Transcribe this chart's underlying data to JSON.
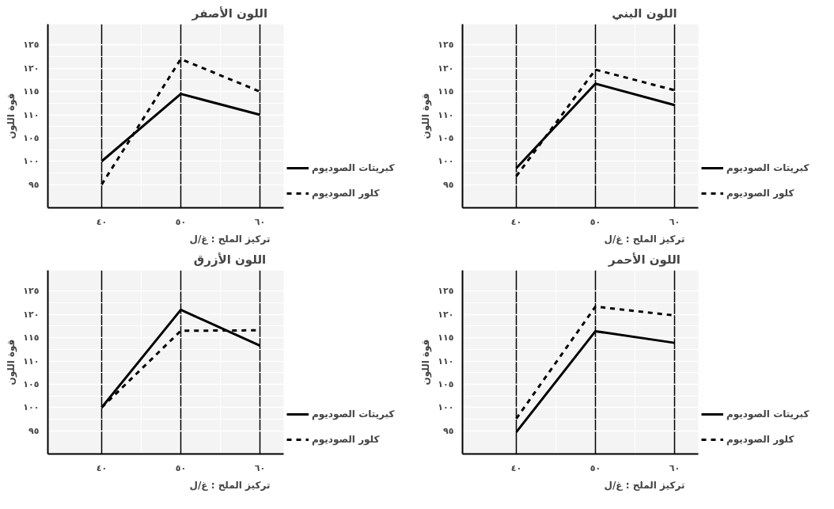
{
  "chart_data": [
    {
      "type": "line",
      "title": "اللون الأصفر",
      "xlabel": "تركيز الملح : غ/ل",
      "ylabel": "قوة اللون",
      "x": [
        40,
        50,
        60
      ],
      "xlim": [
        33.2,
        63
      ],
      "ylim": [
        90,
        129.5
      ],
      "xticks": [
        {
          "value": 40,
          "label": "٤٠"
        },
        {
          "value": 50,
          "label": "٥٠"
        },
        {
          "value": 60,
          "label": "٦٠"
        }
      ],
      "yticks": [
        {
          "value": 95,
          "label": "٩٥"
        },
        {
          "value": 100,
          "label": "١٠٠"
        },
        {
          "value": 105,
          "label": "١٠٥"
        },
        {
          "value": 110,
          "label": "١١٠"
        },
        {
          "value": 115,
          "label": "١١٥"
        },
        {
          "value": 120,
          "label": "١٢٠"
        },
        {
          "value": 125,
          "label": "١٢٥"
        }
      ],
      "grid": true,
      "legend": "right",
      "series": [
        {
          "name": "كبريتات الصوديوم",
          "color": "#000000",
          "line_style": "solid",
          "values": [
            100,
            114.5,
            110
          ]
        },
        {
          "name": "كلور الصوديوم",
          "color": "#000000",
          "line_style": "dashed",
          "values": [
            95,
            122,
            115
          ]
        }
      ]
    },
    {
      "type": "line",
      "title": "اللون البني",
      "xlabel": "تركيز الملح : غ/ل",
      "ylabel": "قوة اللون",
      "x": [
        40,
        50,
        60
      ],
      "xlim": [
        33.2,
        63
      ],
      "ylim": [
        90,
        129.5
      ],
      "xticks": [
        {
          "value": 40,
          "label": "٤٠"
        },
        {
          "value": 50,
          "label": "٥٠"
        },
        {
          "value": 60,
          "label": "٦٠"
        }
      ],
      "yticks": [
        {
          "value": 95,
          "label": "٩٥"
        },
        {
          "value": 100,
          "label": "١٠٠"
        },
        {
          "value": 105,
          "label": "١٠٥"
        },
        {
          "value": 110,
          "label": "١١٠"
        },
        {
          "value": 115,
          "label": "١١٥"
        },
        {
          "value": 120,
          "label": "١٢٠"
        },
        {
          "value": 125,
          "label": "١٢٥"
        }
      ],
      "grid": true,
      "legend": "right",
      "series": [
        {
          "name": "كبريتات الصوديوم",
          "color": "#000000",
          "line_style": "solid",
          "values": [
            98.5,
            116.7,
            112.1
          ]
        },
        {
          "name": "كلور الصوديوم",
          "color": "#000000",
          "line_style": "dashed",
          "values": [
            96.8,
            119.7,
            115.3
          ]
        }
      ]
    },
    {
      "type": "line",
      "title": "اللون الأزرق",
      "xlabel": "تركيز الملح : غ/ل",
      "ylabel": "قوة اللون",
      "x": [
        40,
        50,
        60
      ],
      "xlim": [
        33.2,
        63
      ],
      "ylim": [
        90,
        129.5
      ],
      "xticks": [
        {
          "value": 40,
          "label": "٤٠"
        },
        {
          "value": 50,
          "label": "٥٠"
        },
        {
          "value": 60,
          "label": "٦٠"
        }
      ],
      "yticks": [
        {
          "value": 95,
          "label": "٩٥"
        },
        {
          "value": 100,
          "label": "١٠٠"
        },
        {
          "value": 105,
          "label": "١٠٥"
        },
        {
          "value": 110,
          "label": "١١٠"
        },
        {
          "value": 115,
          "label": "١١٥"
        },
        {
          "value": 120,
          "label": "١٢٠"
        },
        {
          "value": 125,
          "label": "١٢٥"
        }
      ],
      "grid": true,
      "legend": "right",
      "series": [
        {
          "name": "كبريتات الصوديوم",
          "color": "#000000",
          "line_style": "solid",
          "values": [
            100,
            121,
            113.3
          ]
        },
        {
          "name": "كلور الصوديوم",
          "color": "#000000",
          "line_style": "dashed",
          "values": [
            100,
            116.5,
            116.6
          ]
        }
      ]
    },
    {
      "type": "line",
      "title": "اللون الأحمر",
      "xlabel": "تركيز الملح : غ/ل",
      "ylabel": "قوة اللون",
      "x": [
        40,
        50,
        60
      ],
      "xlim": [
        33.2,
        63
      ],
      "ylim": [
        90,
        129.5
      ],
      "xticks": [
        {
          "value": 40,
          "label": "٤٠"
        },
        {
          "value": 50,
          "label": "٥٠"
        },
        {
          "value": 60,
          "label": "٦٠"
        }
      ],
      "yticks": [
        {
          "value": 95,
          "label": "٩٥"
        },
        {
          "value": 100,
          "label": "١٠٠"
        },
        {
          "value": 105,
          "label": "١٠٥"
        },
        {
          "value": 110,
          "label": "١١٠"
        },
        {
          "value": 115,
          "label": "١١٥"
        },
        {
          "value": 120,
          "label": "١٢٠"
        },
        {
          "value": 125,
          "label": "١٢٥"
        }
      ],
      "grid": true,
      "legend": "right",
      "series": [
        {
          "name": "كبريتات الصوديوم",
          "color": "#000000",
          "line_style": "solid",
          "values": [
            94.7,
            116.4,
            113.9
          ]
        },
        {
          "name": "كلور الصوديوم",
          "color": "#000000",
          "line_style": "dashed",
          "values": [
            97.6,
            121.7,
            119.8
          ]
        }
      ]
    }
  ]
}
